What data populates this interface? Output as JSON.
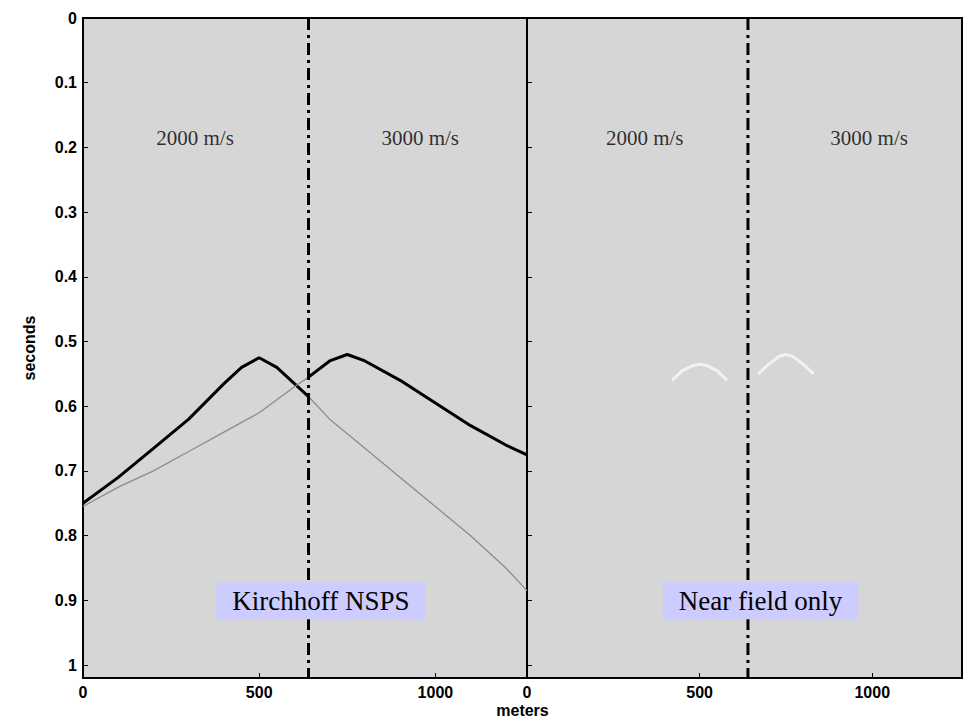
{
  "chart_data": [
    {
      "type": "line",
      "title": "Kirchhoff NSPS",
      "xlabel": "meters",
      "ylabel": "seconds",
      "xlim": [
        0,
        1260
      ],
      "xticks": [
        0,
        500,
        1000
      ],
      "ylim": [
        0,
        1.02
      ],
      "yticks": [
        0,
        0.1,
        0.2,
        0.3,
        0.4,
        0.5,
        0.6,
        0.7,
        0.8,
        0.9,
        1
      ],
      "annotations": [
        {
          "text": "2000 m/s",
          "x": 318,
          "y": 0.185
        },
        {
          "text": "3000 m/s",
          "x": 957,
          "y": 0.185
        }
      ],
      "series": [
        {
          "x": [
            0,
            100,
            200,
            300,
            400,
            450,
            500,
            550,
            600,
            640
          ],
          "values": [
            0.75,
            0.71,
            0.665,
            0.62,
            0.565,
            0.54,
            0.525,
            0.54,
            0.565,
            0.585
          ],
          "color": "#000000",
          "line_style": "solid"
        },
        {
          "x": [
            640,
            700,
            800,
            900,
            1000,
            1100,
            1200,
            1260
          ],
          "values": [
            0.585,
            0.62,
            0.665,
            0.71,
            0.755,
            0.8,
            0.85,
            0.885
          ],
          "color": "#8c8c8c",
          "line_style": "thin"
        },
        {
          "x": [
            0,
            100,
            200,
            300,
            400,
            500,
            600,
            640
          ],
          "values": [
            0.755,
            0.725,
            0.7,
            0.67,
            0.64,
            0.61,
            0.57,
            0.555
          ],
          "color": "#8c8c8c",
          "line_style": "thin"
        },
        {
          "x": [
            640,
            700,
            750,
            800,
            900,
            1000,
            1100,
            1200,
            1260
          ],
          "values": [
            0.555,
            0.53,
            0.52,
            0.53,
            0.56,
            0.595,
            0.63,
            0.66,
            0.675
          ],
          "color": "#000000",
          "line_style": "solid"
        },
        {
          "x": [
            640,
            640
          ],
          "values": [
            0,
            1.02
          ],
          "color": "#000000",
          "line_style": "dashdot"
        }
      ]
    },
    {
      "type": "line",
      "title": "Near field only",
      "tick_labels": "x",
      "xlim": [
        0,
        1260
      ],
      "xticks": [
        0,
        500,
        1000
      ],
      "ylim": [
        0,
        1.02
      ],
      "yticks": [
        0,
        0.1,
        0.2,
        0.3,
        0.4,
        0.5,
        0.6,
        0.7,
        0.8,
        0.9,
        1
      ],
      "annotations": [
        {
          "text": "2000 m/s",
          "x": 341,
          "y": 0.185
        },
        {
          "text": "3000 m/s",
          "x": 991,
          "y": 0.185
        }
      ],
      "series": [
        {
          "x": [
            420,
            450,
            480,
            500,
            520,
            550,
            580
          ],
          "values": [
            0.56,
            0.545,
            0.537,
            0.535,
            0.537,
            0.545,
            0.56
          ],
          "color": "#f2f2f2",
          "line_style": "solid"
        },
        {
          "x": [
            670,
            700,
            730,
            750,
            770,
            800,
            830
          ],
          "values": [
            0.55,
            0.535,
            0.523,
            0.52,
            0.523,
            0.535,
            0.55
          ],
          "color": "#f2f2f2",
          "line_style": "solid"
        },
        {
          "x": [
            640,
            640
          ],
          "values": [
            0,
            1.02
          ],
          "color": "#000000",
          "line_style": "dashdot"
        }
      ]
    }
  ]
}
